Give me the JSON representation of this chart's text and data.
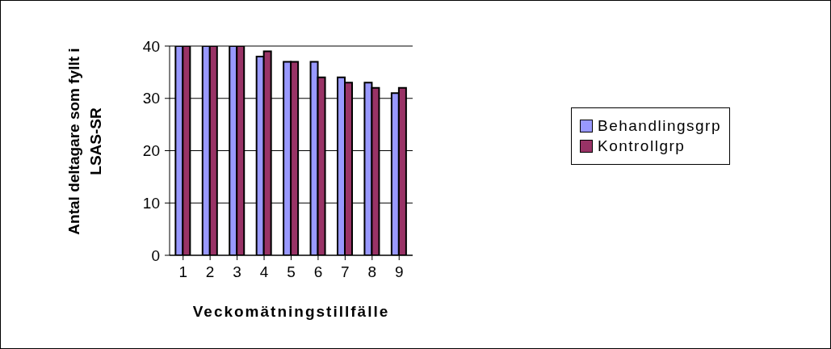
{
  "chart_data": {
    "type": "bar",
    "xlabel": "Veckomätningstillfälle",
    "ylabel": "Antal deltagare som fyllt i LSAS-SR",
    "categories": [
      "1",
      "2",
      "3",
      "4",
      "5",
      "6",
      "7",
      "8",
      "9"
    ],
    "series": [
      {
        "name": "Behandlingsgrp",
        "color": "#9999ff",
        "values": [
          40,
          40,
          40,
          38,
          37,
          37,
          34,
          33,
          31
        ]
      },
      {
        "name": "Kontrollgrp",
        "color": "#993366",
        "values": [
          40,
          40,
          40,
          39,
          37,
          34,
          33,
          32,
          32
        ]
      }
    ],
    "ylim": [
      0,
      40
    ],
    "yticks": [
      0,
      10,
      20,
      30,
      40
    ],
    "grid": "y",
    "legend": "right"
  }
}
